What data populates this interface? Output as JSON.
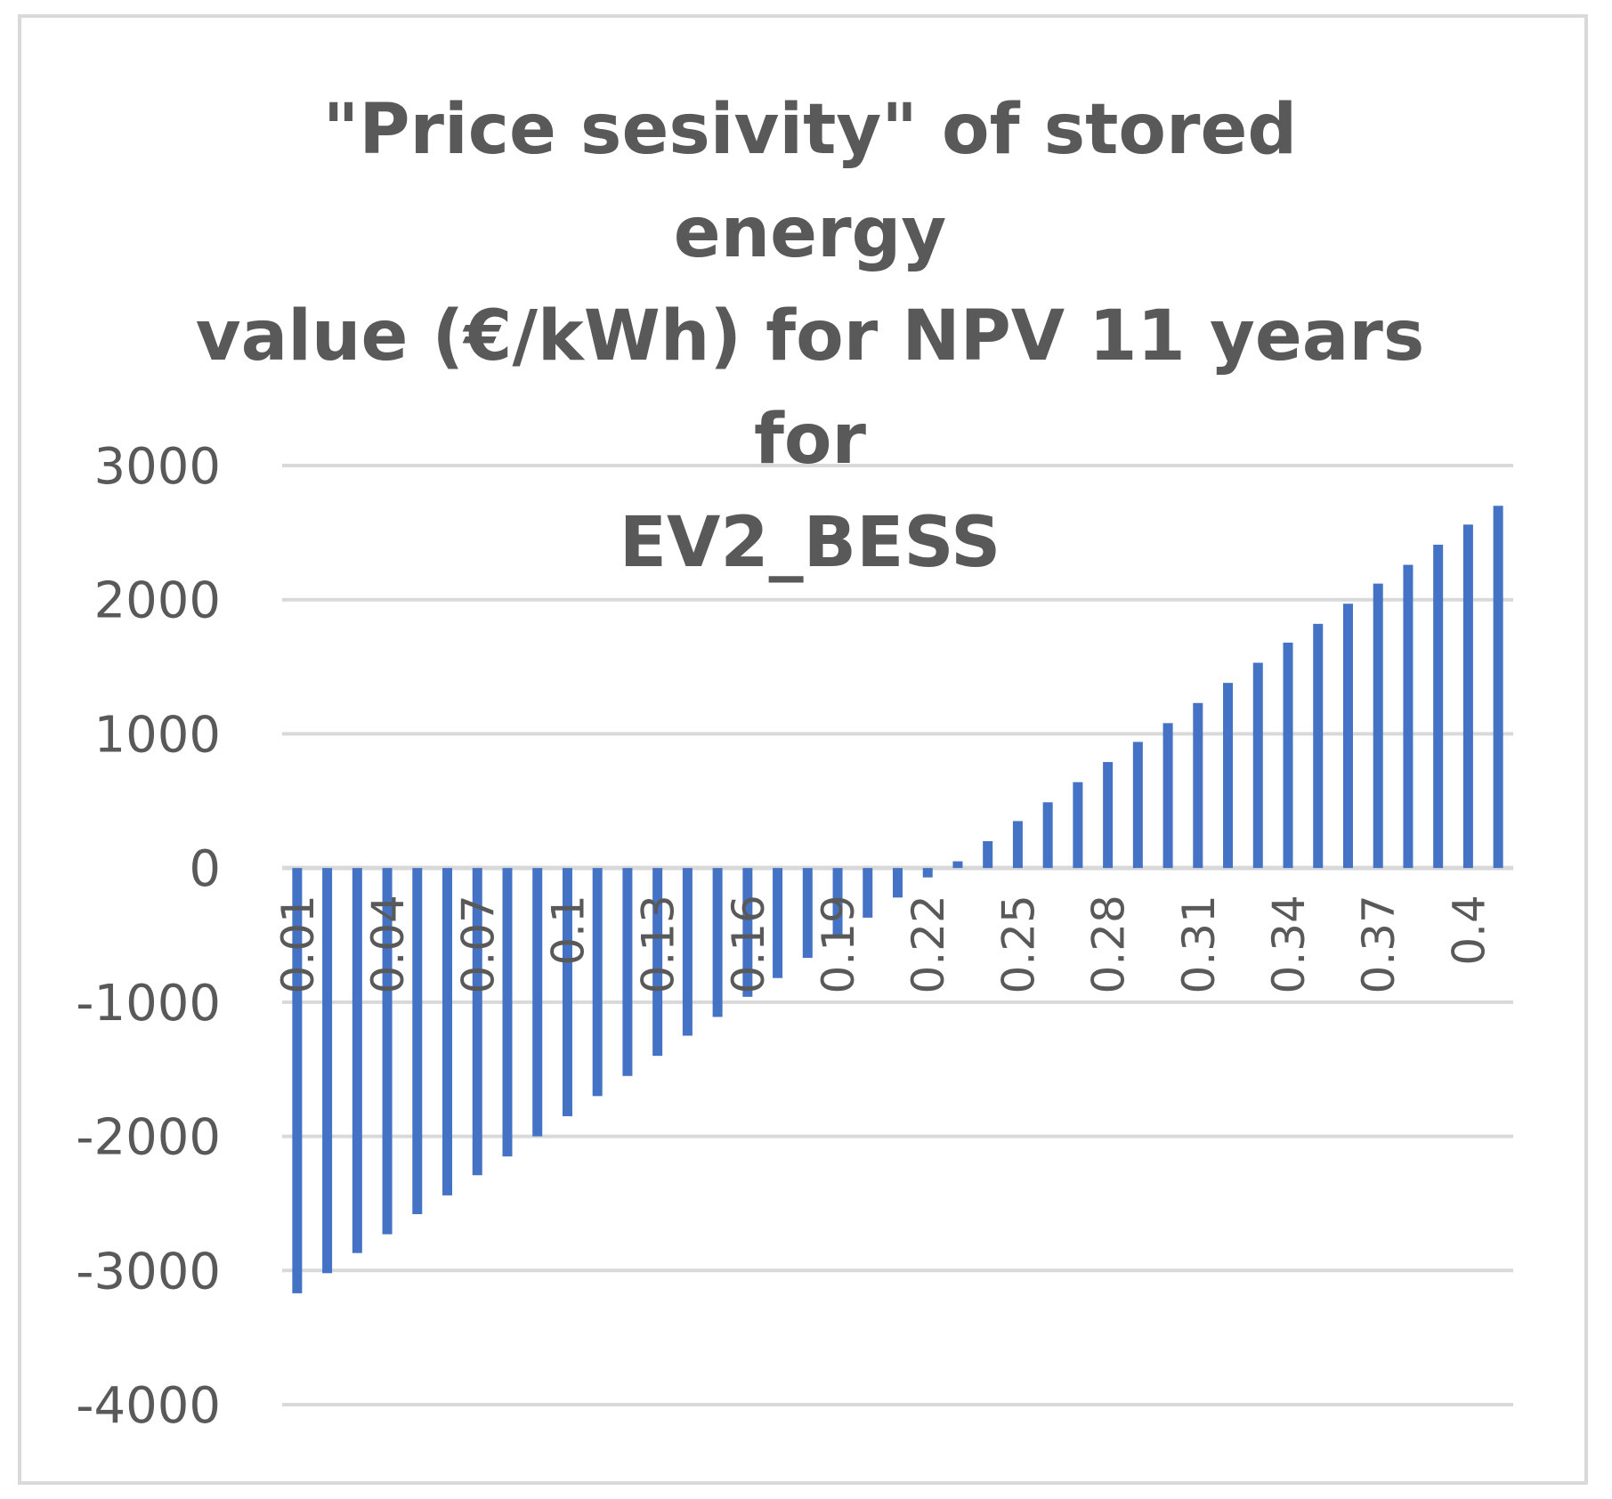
{
  "chart_data": {
    "type": "bar",
    "title_lines": [
      "\"Price sesivity\" of stored energy",
      "value (€/kWh) for NPV 11 years for",
      "EV2_BESS"
    ],
    "xlabel": "",
    "ylabel": "",
    "ylim": [
      -4000,
      3000
    ],
    "y_ticks": [
      3000,
      2000,
      1000,
      0,
      -1000,
      -2000,
      -3000,
      -4000
    ],
    "grid": true,
    "legend": "none",
    "categories": [
      "0.01",
      "0.02",
      "0.03",
      "0.04",
      "0.05",
      "0.06",
      "0.07",
      "0.08",
      "0.09",
      "0.1",
      "0.11",
      "0.12",
      "0.13",
      "0.14",
      "0.15",
      "0.16",
      "0.17",
      "0.18",
      "0.19",
      "0.2",
      "0.21",
      "0.22",
      "0.23",
      "0.24",
      "0.25",
      "0.26",
      "0.27",
      "0.28",
      "0.29",
      "0.3",
      "0.31",
      "0.32",
      "0.33",
      "0.34",
      "0.35",
      "0.36",
      "0.37",
      "0.38",
      "0.39",
      "0.4",
      "0.41"
    ],
    "x_tick_labels_shown": [
      "0.01",
      "0.04",
      "0.07",
      "0.1",
      "0.13",
      "0.16",
      "0.19",
      "0.22",
      "0.25",
      "0.28",
      "0.31",
      "0.34",
      "0.37",
      "0.4"
    ],
    "series": [
      {
        "name": "NPV",
        "color": "#4472c4",
        "values": [
          -3170,
          -3020,
          -2870,
          -2730,
          -2580,
          -2440,
          -2290,
          -2150,
          -2000,
          -1850,
          -1700,
          -1550,
          -1400,
          -1250,
          -1110,
          -960,
          -820,
          -670,
          -520,
          -370,
          -220,
          -70,
          50,
          200,
          350,
          490,
          640,
          790,
          940,
          1080,
          1230,
          1380,
          1530,
          1680,
          1820,
          1970,
          2120,
          2260,
          2410,
          2560,
          2700
        ]
      }
    ]
  },
  "colors": {
    "gridline": "#d9d9d9",
    "text": "#595959",
    "bar": "#4472c4"
  }
}
